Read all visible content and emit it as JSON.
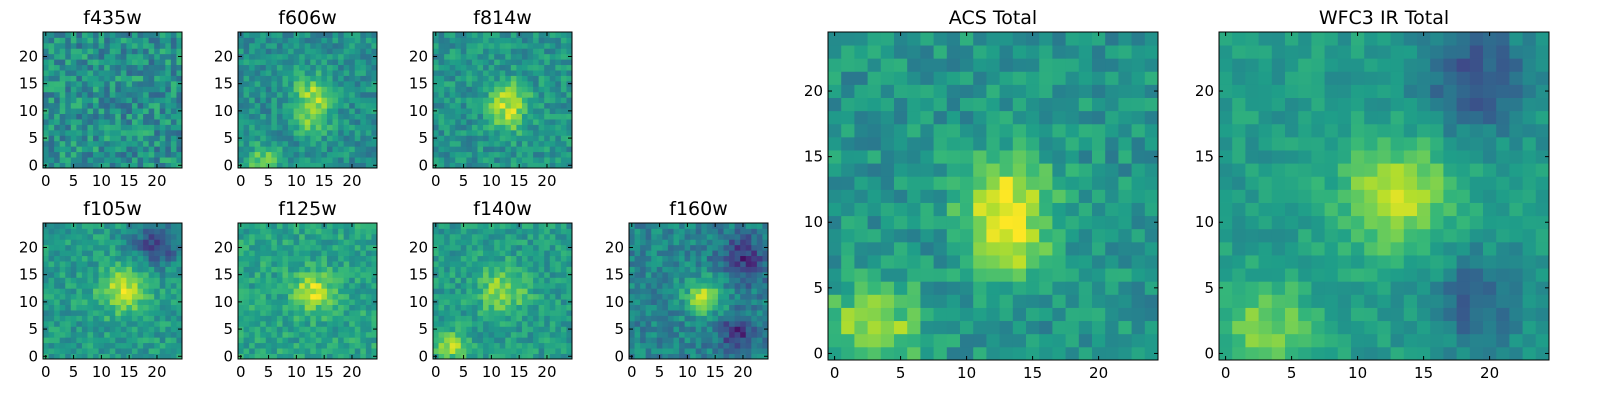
{
  "chart_data": [
    {
      "type": "heatmap",
      "title": "f435w",
      "xlim": [
        0,
        24
      ],
      "ylim": [
        0,
        24
      ],
      "xticks": [
        "0",
        "5",
        "10",
        "15",
        "20"
      ],
      "yticks": [
        "0",
        "5",
        "10",
        "15",
        "20"
      ],
      "colormap": "viridis",
      "grid_size": 25,
      "features": {
        "noise": 0.18,
        "mean": 0.5,
        "blobs": []
      }
    },
    {
      "type": "heatmap",
      "title": "f606w",
      "xlim": [
        0,
        24
      ],
      "ylim": [
        0,
        24
      ],
      "xticks": [
        "0",
        "5",
        "10",
        "15",
        "20"
      ],
      "yticks": [
        "0",
        "5",
        "10",
        "15",
        "20"
      ],
      "colormap": "viridis",
      "grid_size": 25,
      "features": {
        "noise": 0.13,
        "mean": 0.5,
        "blobs": [
          [
            13,
            13,
            2.5,
            0.35
          ],
          [
            13,
            8,
            2.0,
            0.25
          ],
          [
            4,
            1,
            2.0,
            0.3
          ]
        ]
      }
    },
    {
      "type": "heatmap",
      "title": "f814w",
      "xlim": [
        0,
        24
      ],
      "ylim": [
        0,
        24
      ],
      "xticks": [
        "0",
        "5",
        "10",
        "15",
        "20"
      ],
      "yticks": [
        "0",
        "5",
        "10",
        "15",
        "20"
      ],
      "colormap": "viridis",
      "grid_size": 25,
      "features": {
        "noise": 0.13,
        "mean": 0.52,
        "blobs": [
          [
            13,
            12,
            2.5,
            0.35
          ],
          [
            13,
            8,
            2.0,
            0.2
          ]
        ]
      }
    },
    {
      "type": "heatmap",
      "title": "f105w",
      "xlim": [
        0,
        24
      ],
      "ylim": [
        0,
        24
      ],
      "xticks": [
        "0",
        "5",
        "10",
        "15",
        "20"
      ],
      "yticks": [
        "0",
        "5",
        "10",
        "15",
        "20"
      ],
      "colormap": "viridis",
      "grid_size": 25,
      "features": {
        "noise": 0.12,
        "mean": 0.55,
        "blobs": [
          [
            14,
            12,
            3.0,
            0.35
          ],
          [
            20,
            21,
            3.0,
            -0.35
          ]
        ]
      }
    },
    {
      "type": "heatmap",
      "title": "f125w",
      "xlim": [
        0,
        24
      ],
      "ylim": [
        0,
        24
      ],
      "xticks": [
        "0",
        "5",
        "10",
        "15",
        "20"
      ],
      "yticks": [
        "0",
        "5",
        "10",
        "15",
        "20"
      ],
      "colormap": "viridis",
      "grid_size": 25,
      "features": {
        "noise": 0.12,
        "mean": 0.58,
        "blobs": [
          [
            13,
            12,
            2.5,
            0.35
          ]
        ]
      }
    },
    {
      "type": "heatmap",
      "title": "f140w",
      "xlim": [
        0,
        24
      ],
      "ylim": [
        0,
        24
      ],
      "xticks": [
        "0",
        "5",
        "10",
        "15",
        "20"
      ],
      "yticks": [
        "0",
        "5",
        "10",
        "15",
        "20"
      ],
      "colormap": "viridis",
      "grid_size": 25,
      "features": {
        "noise": 0.12,
        "mean": 0.55,
        "blobs": [
          [
            12,
            12,
            3.0,
            0.3
          ],
          [
            3,
            2,
            2.0,
            0.3
          ]
        ]
      }
    },
    {
      "type": "heatmap",
      "title": "f160w",
      "xlim": [
        0,
        24
      ],
      "ylim": [
        0,
        24
      ],
      "xticks": [
        "0",
        "5",
        "10",
        "15",
        "20"
      ],
      "yticks": [
        "0",
        "5",
        "10",
        "15",
        "20"
      ],
      "colormap": "viridis",
      "grid_size": 25,
      "features": {
        "noise": 0.13,
        "mean": 0.45,
        "blobs": [
          [
            13,
            11,
            2.5,
            0.4
          ],
          [
            20,
            18,
            3.0,
            -0.3
          ],
          [
            19,
            4,
            2.5,
            -0.3
          ]
        ]
      }
    },
    {
      "type": "heatmap",
      "title": "ACS Total",
      "xlim": [
        0,
        24
      ],
      "ylim": [
        0,
        24
      ],
      "xticks": [
        "0",
        "5",
        "10",
        "15",
        "20"
      ],
      "yticks": [
        "0",
        "5",
        "10",
        "15",
        "20"
      ],
      "colormap": "viridis",
      "grid_size": 25,
      "features": {
        "noise": 0.12,
        "mean": 0.52,
        "blobs": [
          [
            13,
            12,
            2.5,
            0.4
          ],
          [
            13,
            8,
            2.0,
            0.3
          ],
          [
            3,
            2,
            2.5,
            0.35
          ]
        ]
      }
    },
    {
      "type": "heatmap",
      "title": "WFC3 IR Total",
      "xlim": [
        0,
        24
      ],
      "ylim": [
        0,
        24
      ],
      "xticks": [
        "0",
        "5",
        "10",
        "15",
        "20"
      ],
      "yticks": [
        "0",
        "5",
        "10",
        "15",
        "20"
      ],
      "colormap": "viridis",
      "grid_size": 25,
      "features": {
        "noise": 0.08,
        "mean": 0.55,
        "blobs": [
          [
            13,
            12,
            3.0,
            0.35
          ],
          [
            19,
            21,
            3.0,
            -0.3
          ],
          [
            3,
            2,
            2.5,
            0.25
          ],
          [
            19,
            4,
            2.5,
            -0.25
          ]
        ]
      }
    }
  ]
}
